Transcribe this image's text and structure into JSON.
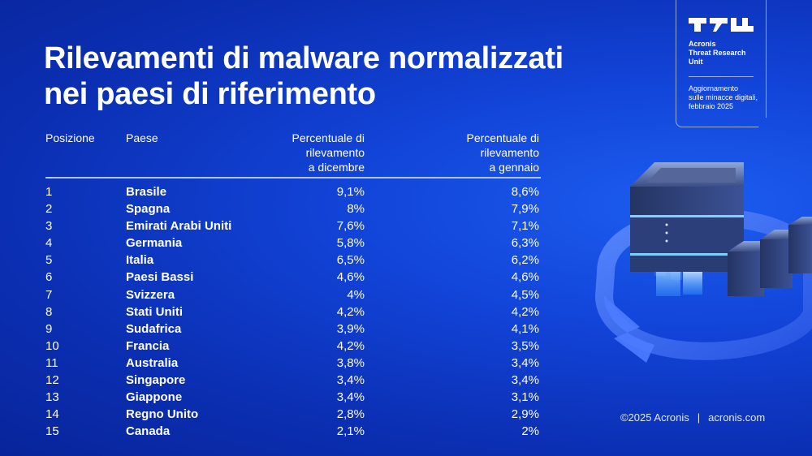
{
  "title": {
    "line1": "Rilevamenti di malware normalizzati",
    "line2": "nei paesi di riferimento"
  },
  "badge": {
    "unit_line1": "Acronis",
    "unit_line2": "Threat Research",
    "unit_line3": "Unit",
    "update_line1": "Aggiornamento",
    "update_line2": "sulle minacce digitali,",
    "update_line3": "febbraio 2025"
  },
  "footer": {
    "copyright": "©2025 Acronis",
    "separator": "|",
    "site": "acronis.com"
  },
  "chart_data": {
    "type": "table",
    "title": "Rilevamenti di malware normalizzati nei paesi di riferimento",
    "columns": {
      "position": "Posizione",
      "country": "Paese",
      "december_l1": "Percentuale di",
      "december_l2": "rilevamento",
      "december_l3": "a dicembre",
      "january_l1": "Percentuale di",
      "january_l2": "rilevamento",
      "january_l3": "a gennaio"
    },
    "rows": [
      {
        "position": "1",
        "country": "Brasile",
        "december": "9,1%",
        "january": "8,6%"
      },
      {
        "position": "2",
        "country": "Spagna",
        "december": "8%",
        "january": "7,9%"
      },
      {
        "position": "3",
        "country": "Emirati Arabi Uniti",
        "december": "7,6%",
        "january": "7,1%"
      },
      {
        "position": "4",
        "country": "Germania",
        "december": "5,8%",
        "january": "6,3%"
      },
      {
        "position": "5",
        "country": "Italia",
        "december": "6,5%",
        "january": "6,2%"
      },
      {
        "position": "6",
        "country": "Paesi Bassi",
        "december": "4,6%",
        "january": "4,6%"
      },
      {
        "position": "7",
        "country": "Svizzera",
        "december": "4%",
        "january": "4,5%"
      },
      {
        "position": "8",
        "country": "Stati Uniti",
        "december": "4,2%",
        "january": "4,2%"
      },
      {
        "position": "9",
        "country": "Sudafrica",
        "december": "3,9%",
        "january": "4,1%"
      },
      {
        "position": "10",
        "country": "Francia",
        "december": "4,2%",
        "january": "3,5%"
      },
      {
        "position": "11",
        "country": "Australia",
        "december": "3,8%",
        "january": "3,4%"
      },
      {
        "position": "12",
        "country": "Singapore",
        "december": "3,4%",
        "january": "3,4%"
      },
      {
        "position": "13",
        "country": "Giappone",
        "december": "3,4%",
        "january": "3,1%"
      },
      {
        "position": "14",
        "country": "Regno Unito",
        "december": "2,8%",
        "january": "2,9%"
      },
      {
        "position": "15",
        "country": "Canada",
        "december": "2,1%",
        "january": "2%"
      }
    ]
  },
  "colors": {
    "background": "#1244d8",
    "divider": "#a9c4ff",
    "text": "#ffffff"
  },
  "icons": {
    "logo": "tru-logo-icon",
    "illustration": "server-cycle-illustration-icon"
  }
}
